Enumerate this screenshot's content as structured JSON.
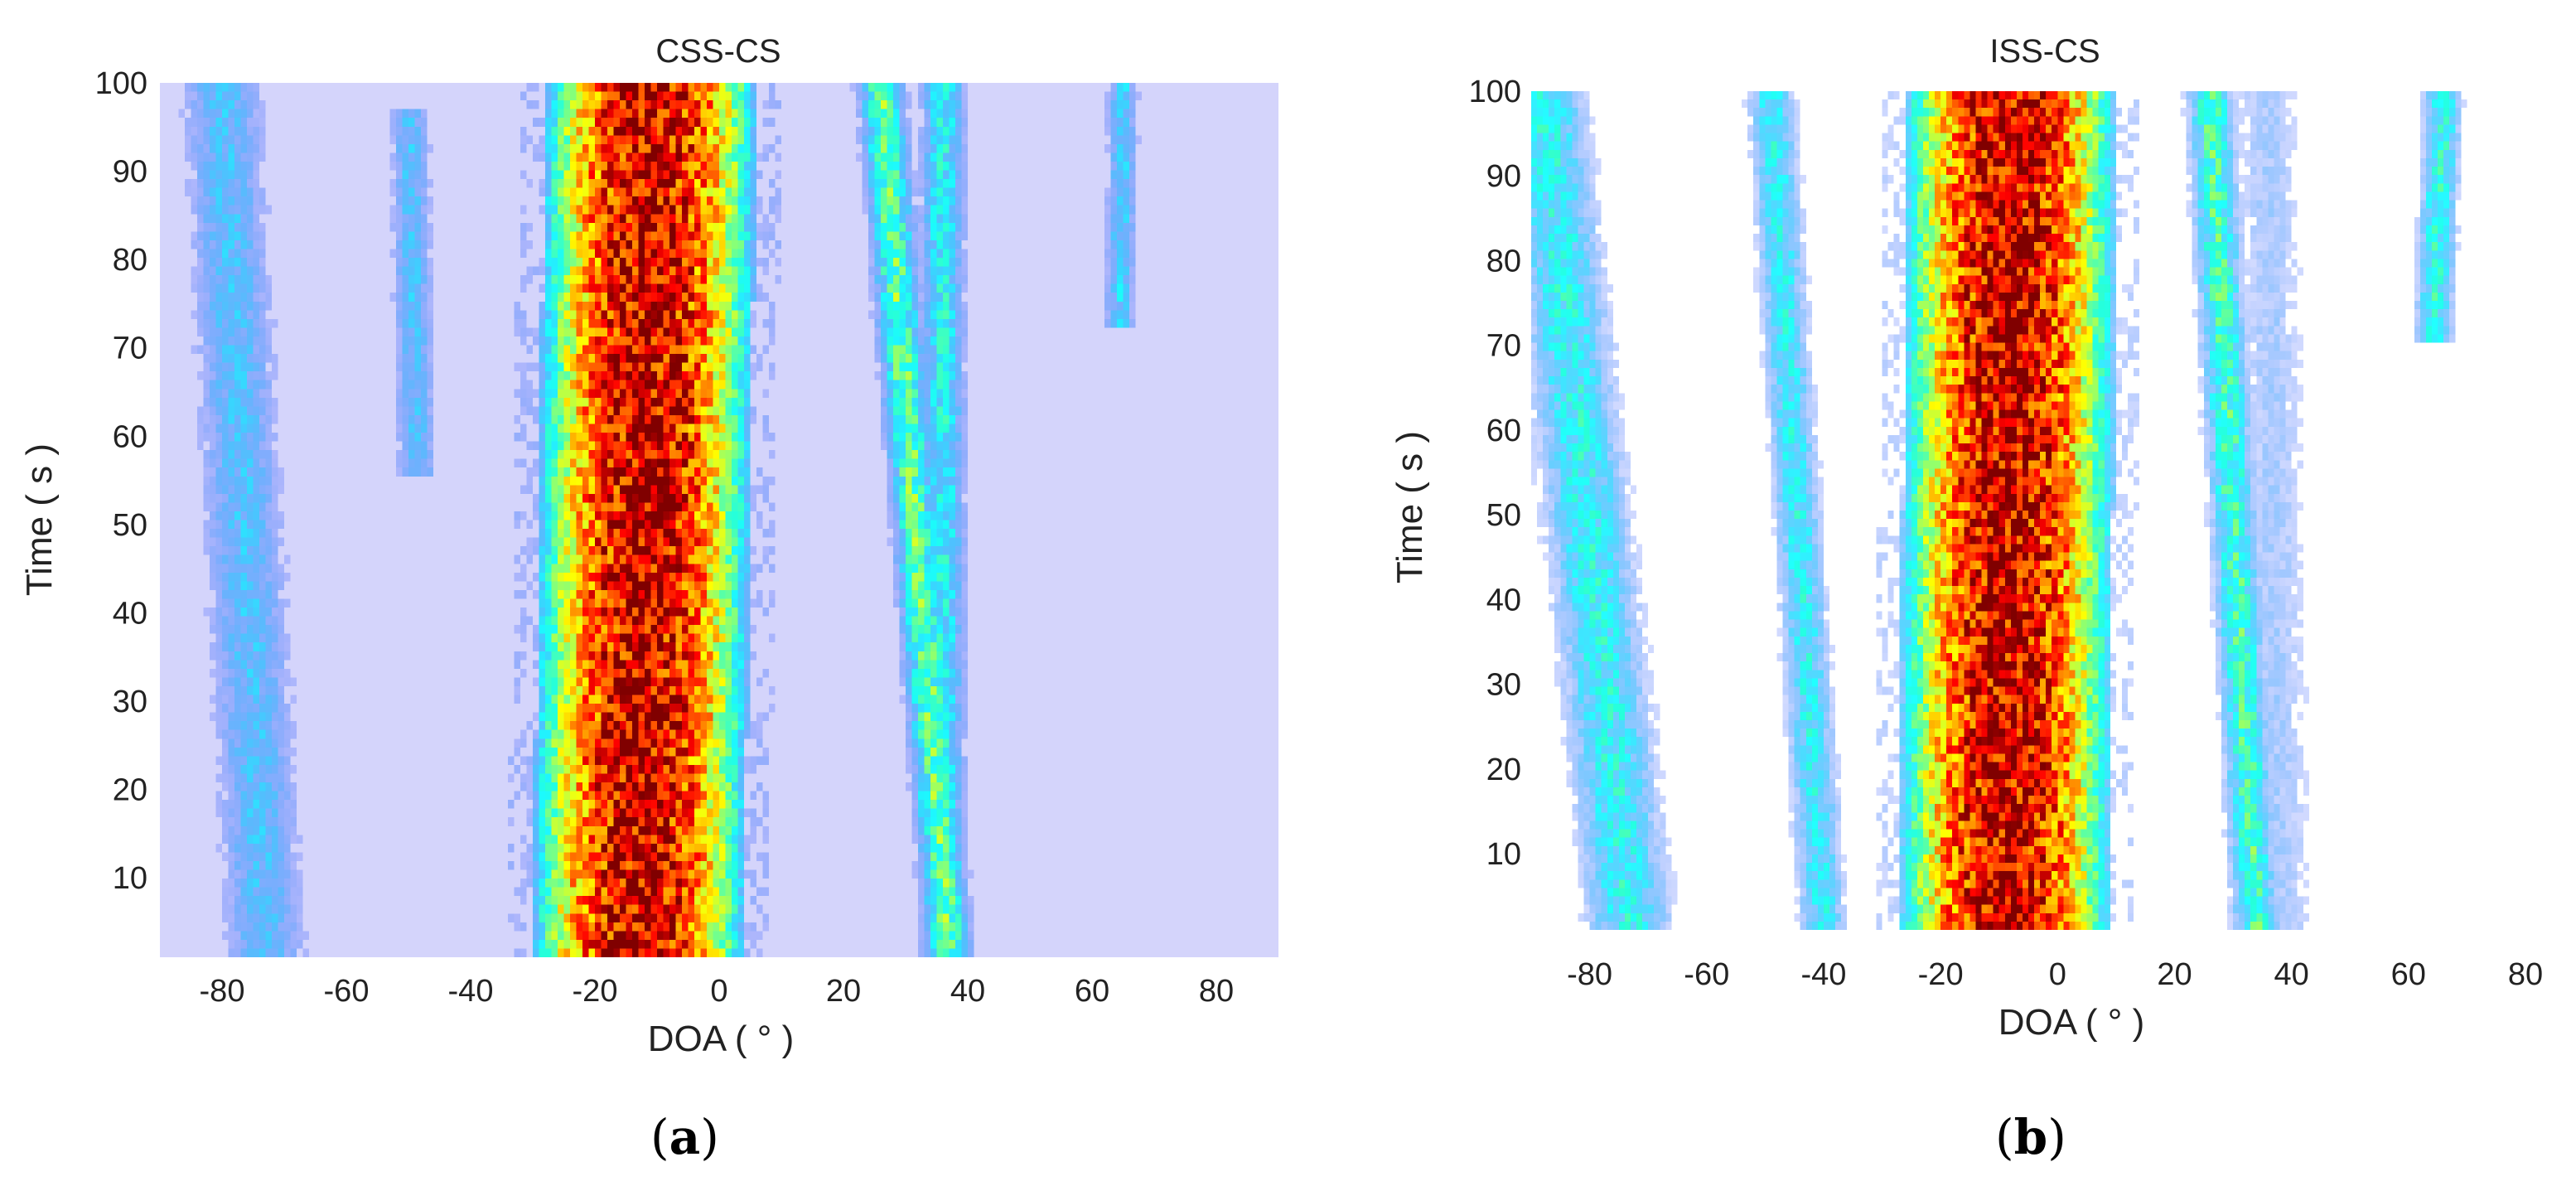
{
  "chart_data": [
    {
      "type": "heatmap",
      "title": "CSS-CS",
      "xlabel": "DOA ( ° )",
      "ylabel": "Time ( s )",
      "caption": "a",
      "xlim": [
        -90,
        90
      ],
      "ylim": [
        1,
        100
      ],
      "xticks": [
        -80,
        -60,
        -40,
        -20,
        0,
        20,
        40,
        60,
        80
      ],
      "yticks": [
        10,
        20,
        30,
        40,
        50,
        60,
        70,
        80,
        90,
        100
      ],
      "background_color": "#d4d4fb",
      "colormap": "jet",
      "tracks": [
        {
          "kind": "band",
          "doa_start": -13,
          "doa_end": -11,
          "width": 34,
          "peak": 1.0,
          "t_start": 1,
          "t_end": 100
        },
        {
          "kind": "line",
          "doa_start": 37,
          "doa_end": 26,
          "width": 2.2,
          "peak": 0.45,
          "t_start": 1,
          "t_end": 100
        },
        {
          "kind": "line",
          "doa_start": 36,
          "doa_end": 36,
          "width": 2.2,
          "peak": 0.32,
          "t_start": 1,
          "t_end": 100
        },
        {
          "kind": "line",
          "doa_start": -73,
          "doa_end": -80,
          "width": 4,
          "peak": 0.22,
          "t_start": 1,
          "t_end": 100
        },
        {
          "kind": "line",
          "doa_start": -47,
          "doa_end": -50,
          "width": 2,
          "peak": 0.22,
          "t_start": 55,
          "t_end": 97
        },
        {
          "kind": "line",
          "doa_start": 63,
          "doa_end": 65,
          "width": 1.5,
          "peak": 0.25,
          "t_start": 72,
          "t_end": 100
        }
      ]
    },
    {
      "type": "heatmap",
      "title": "ISS-CS",
      "xlabel": "DOA ( ° )",
      "ylabel": "Time ( s )",
      "caption": "b",
      "xlim": [
        -90,
        80
      ],
      "ylim": [
        1,
        100
      ],
      "xticks": [
        -80,
        -60,
        -40,
        -20,
        0,
        20,
        40,
        60,
        80
      ],
      "yticks": [
        10,
        20,
        30,
        40,
        50,
        60,
        70,
        80,
        90,
        100
      ],
      "background_color": "#ffffff",
      "colormap": "jet",
      "tracks": [
        {
          "kind": "band",
          "doa_start": -9,
          "doa_end": -8,
          "width": 36,
          "peak": 1.0,
          "t_start": 1,
          "t_end": 100
        },
        {
          "kind": "line",
          "doa_start": 34,
          "doa_end": 26,
          "width": 2.4,
          "peak": 0.4,
          "t_start": 1,
          "t_end": 100
        },
        {
          "kind": "line",
          "doa_start": -73,
          "doa_end": -88,
          "width": 4.5,
          "peak": 0.32,
          "t_start": 1,
          "t_end": 100
        },
        {
          "kind": "line",
          "doa_start": -40,
          "doa_end": -49,
          "width": 2.5,
          "peak": 0.3,
          "t_start": 1,
          "t_end": 100
        },
        {
          "kind": "line",
          "doa_start": 60,
          "doa_end": 66,
          "width": 2,
          "peak": 0.35,
          "t_start": 70,
          "t_end": 100
        },
        {
          "kind": "line",
          "doa_start": 38,
          "doa_end": 36,
          "width": 4,
          "peak": 0.12,
          "t_start": 1,
          "t_end": 100
        }
      ]
    }
  ]
}
